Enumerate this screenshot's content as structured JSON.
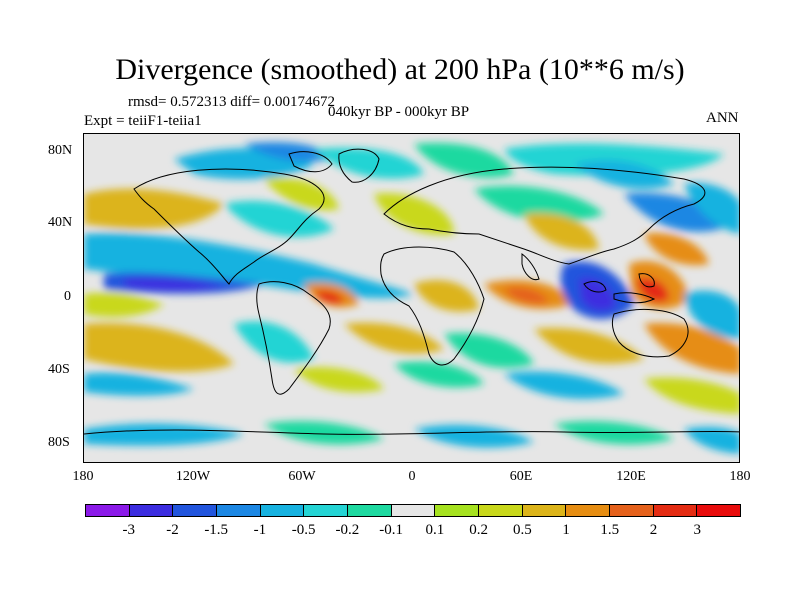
{
  "title": "Divergence (smoothed) at 200 hPa (10**6 m/s)",
  "stats": "rmsd= 0.572313 diff= 0.00174672",
  "experiment": "Expt = teiiF1-teiia1",
  "period": "040kyr BP - 000kyr BP",
  "season": "ANN",
  "map": {
    "projection": "cylindrical equidistant",
    "lon_range": [
      -180,
      180
    ],
    "lat_range": [
      -90,
      90
    ],
    "y_ticks": [
      "80N",
      "40N",
      "0",
      "40S",
      "80S"
    ],
    "x_ticks": [
      "180",
      "120W",
      "60W",
      "0",
      "60E",
      "120E",
      "180"
    ]
  },
  "colorbar": {
    "labels": [
      "-3",
      "-2",
      "-1.5",
      "-1",
      "-0.5",
      "-0.2",
      "-0.1",
      "0.1",
      "0.2",
      "0.5",
      "1",
      "1.5",
      "2",
      "3"
    ],
    "colors": [
      "#8b1ae8",
      "#3c2de0",
      "#2255dd",
      "#1c87e3",
      "#17b2e0",
      "#24d4d4",
      "#1ed9a0",
      "#e6e6e6",
      "#a6e21f",
      "#c9d81b",
      "#dcb41a",
      "#e68d12",
      "#e5611b",
      "#e42c13",
      "#e80c0c"
    ]
  }
}
